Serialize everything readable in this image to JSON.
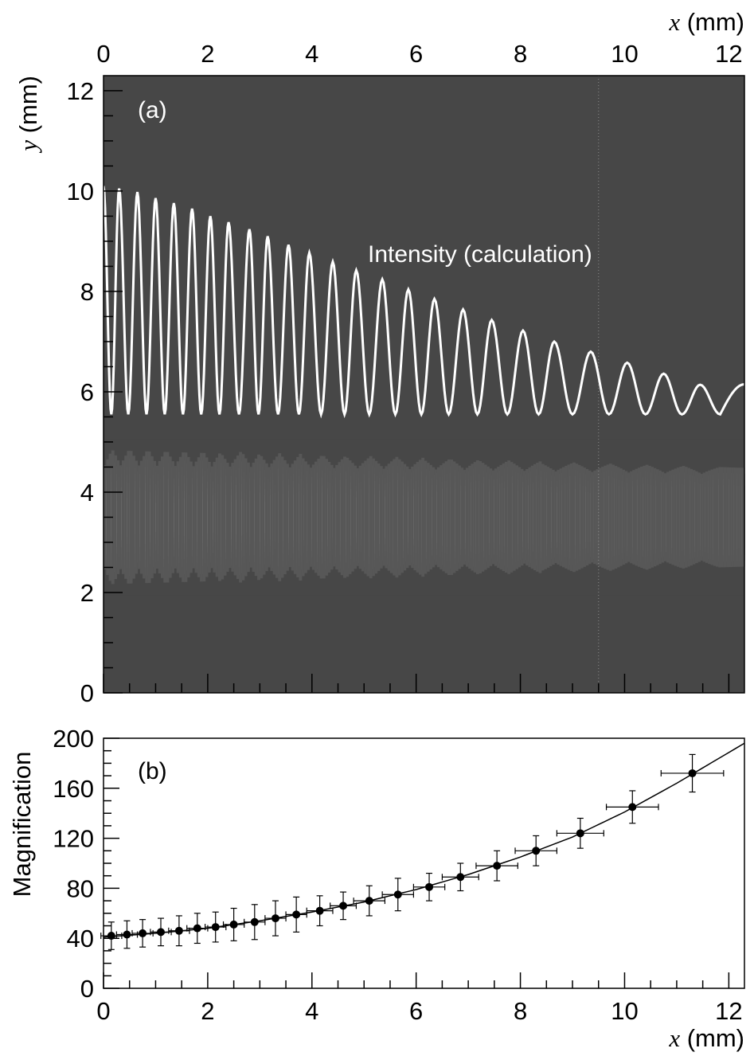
{
  "chart_data": [
    {
      "type": "heatmap",
      "panel_label": "(a)",
      "xlabel_var": "x",
      "xlabel_unit": " (mm)",
      "ylabel_var": "y",
      "ylabel_unit": " (mm)",
      "xlim": [
        0,
        12.3
      ],
      "ylim": [
        0,
        12.3
      ],
      "x_ticks": [
        0,
        2,
        4,
        6,
        8,
        10,
        12
      ],
      "y_ticks": [
        0,
        2,
        4,
        6,
        8,
        10,
        12
      ],
      "x_axis_position": "top",
      "background_color": "#474747",
      "annotation": "Intensity (calculation)",
      "intensity_curve": {
        "color": "#ffffff",
        "peaks": [
          [
            0.0,
            10.1
          ],
          [
            0.3,
            10.05
          ],
          [
            0.65,
            9.98
          ],
          [
            1.0,
            9.86
          ],
          [
            1.35,
            9.76
          ],
          [
            1.7,
            9.65
          ],
          [
            2.05,
            9.5
          ],
          [
            2.4,
            9.38
          ],
          [
            2.8,
            9.24
          ],
          [
            3.15,
            9.1
          ],
          [
            3.55,
            8.93
          ],
          [
            3.95,
            8.77
          ],
          [
            4.4,
            8.59
          ],
          [
            4.85,
            8.42
          ],
          [
            5.35,
            8.24
          ],
          [
            5.85,
            8.04
          ],
          [
            6.35,
            7.85
          ],
          [
            6.9,
            7.64
          ],
          [
            7.45,
            7.43
          ],
          [
            8.05,
            7.22
          ],
          [
            8.65,
            7.0
          ],
          [
            9.35,
            6.8
          ],
          [
            10.05,
            6.58
          ],
          [
            10.75,
            6.36
          ],
          [
            11.45,
            6.14
          ]
        ],
        "baseline": 5.55,
        "end_value": 6.15
      },
      "beam_profile": {
        "center_y": 3.5,
        "half_width_start": 1.55,
        "half_width_end": 1.1,
        "levels": [
          "#575757",
          "#6a6a6a",
          "#7e7e7e",
          "#939393",
          "#a8a8a8",
          "#bdbdbd",
          "#d2d2d2",
          "#e6e6e6"
        ],
        "node_x": [
          0.0,
          0.3,
          0.65,
          1.0,
          1.35,
          1.7,
          2.05,
          2.4,
          2.8,
          3.15,
          3.55,
          3.95,
          4.4,
          4.85,
          5.35,
          5.85,
          6.35,
          6.9,
          7.45,
          8.05,
          8.65,
          9.35,
          10.05,
          10.75,
          11.45
        ]
      },
      "dotted_line_x": 9.5
    },
    {
      "type": "scatter",
      "panel_label": "(b)",
      "xlabel_var": "x",
      "xlabel_unit": " (mm)",
      "ylabel": "Magnification",
      "xlim": [
        0,
        12.3
      ],
      "ylim": [
        0,
        200
      ],
      "x_ticks": [
        0,
        2,
        4,
        6,
        8,
        10,
        12
      ],
      "y_ticks": [
        0,
        40,
        80,
        120,
        160,
        200
      ],
      "points": [
        {
          "x": 0.15,
          "y": 42,
          "xerr": 0.2,
          "yerr": 11
        },
        {
          "x": 0.45,
          "y": 43,
          "xerr": 0.2,
          "yerr": 11
        },
        {
          "x": 0.75,
          "y": 44,
          "xerr": 0.2,
          "yerr": 11
        },
        {
          "x": 1.1,
          "y": 45,
          "xerr": 0.2,
          "yerr": 11
        },
        {
          "x": 1.45,
          "y": 46,
          "xerr": 0.2,
          "yerr": 12
        },
        {
          "x": 1.8,
          "y": 48,
          "xerr": 0.2,
          "yerr": 12
        },
        {
          "x": 2.15,
          "y": 49,
          "xerr": 0.2,
          "yerr": 12
        },
        {
          "x": 2.5,
          "y": 51,
          "xerr": 0.2,
          "yerr": 13
        },
        {
          "x": 2.9,
          "y": 53,
          "xerr": 0.2,
          "yerr": 14
        },
        {
          "x": 3.3,
          "y": 56,
          "xerr": 0.2,
          "yerr": 14
        },
        {
          "x": 3.7,
          "y": 59,
          "xerr": 0.2,
          "yerr": 14
        },
        {
          "x": 4.15,
          "y": 62,
          "xerr": 0.25,
          "yerr": 12
        },
        {
          "x": 4.6,
          "y": 66,
          "xerr": 0.25,
          "yerr": 11
        },
        {
          "x": 5.1,
          "y": 70,
          "xerr": 0.3,
          "yerr": 12
        },
        {
          "x": 5.65,
          "y": 75,
          "xerr": 0.3,
          "yerr": 13
        },
        {
          "x": 6.25,
          "y": 81,
          "xerr": 0.3,
          "yerr": 11
        },
        {
          "x": 6.85,
          "y": 89,
          "xerr": 0.35,
          "yerr": 11
        },
        {
          "x": 7.55,
          "y": 98,
          "xerr": 0.4,
          "yerr": 12
        },
        {
          "x": 8.3,
          "y": 110,
          "xerr": 0.4,
          "yerr": 12
        },
        {
          "x": 9.15,
          "y": 124,
          "xerr": 0.45,
          "yerr": 12
        },
        {
          "x": 10.15,
          "y": 145,
          "xerr": 0.5,
          "yerr": 13
        },
        {
          "x": 11.3,
          "y": 172,
          "xerr": 0.6,
          "yerr": 15
        }
      ],
      "fit_curve": [
        [
          0.0,
          41
        ],
        [
          1.0,
          44
        ],
        [
          2.0,
          48
        ],
        [
          3.0,
          54
        ],
        [
          4.0,
          61
        ],
        [
          5.0,
          69
        ],
        [
          6.0,
          79
        ],
        [
          7.0,
          91
        ],
        [
          8.0,
          105
        ],
        [
          9.0,
          121
        ],
        [
          10.0,
          141
        ],
        [
          11.0,
          164
        ],
        [
          12.3,
          196
        ]
      ]
    }
  ]
}
